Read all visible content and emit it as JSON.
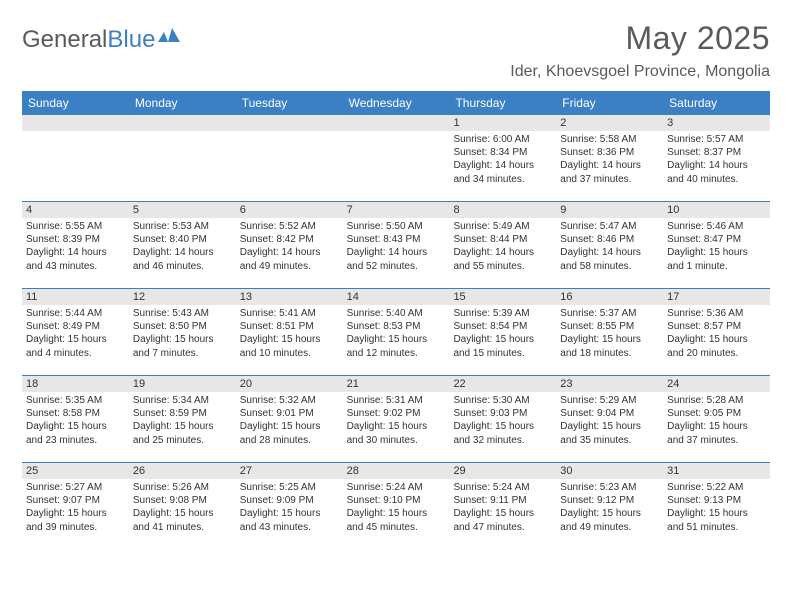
{
  "logo": {
    "text1": "General",
    "text2": "Blue"
  },
  "title": "May 2025",
  "location": "Ider, Khoevsgoel Province, Mongolia",
  "colors": {
    "header_bg": "#3b7fc4",
    "header_text": "#ffffff",
    "daynum_bg": "#e7e7e7",
    "border": "#3b7fc4",
    "text": "#333333",
    "title_text": "#5a5a5a",
    "background": "#ffffff"
  },
  "typography": {
    "title_fontsize": 32,
    "location_fontsize": 16,
    "dayhead_fontsize": 12,
    "cell_fontsize": 10,
    "font_family": "Arial"
  },
  "day_headers": [
    "Sunday",
    "Monday",
    "Tuesday",
    "Wednesday",
    "Thursday",
    "Friday",
    "Saturday"
  ],
  "weeks": [
    [
      {
        "n": "",
        "sunrise": "",
        "sunset": "",
        "daylight": ""
      },
      {
        "n": "",
        "sunrise": "",
        "sunset": "",
        "daylight": ""
      },
      {
        "n": "",
        "sunrise": "",
        "sunset": "",
        "daylight": ""
      },
      {
        "n": "",
        "sunrise": "",
        "sunset": "",
        "daylight": ""
      },
      {
        "n": "1",
        "sunrise": "Sunrise: 6:00 AM",
        "sunset": "Sunset: 8:34 PM",
        "daylight": "Daylight: 14 hours and 34 minutes."
      },
      {
        "n": "2",
        "sunrise": "Sunrise: 5:58 AM",
        "sunset": "Sunset: 8:36 PM",
        "daylight": "Daylight: 14 hours and 37 minutes."
      },
      {
        "n": "3",
        "sunrise": "Sunrise: 5:57 AM",
        "sunset": "Sunset: 8:37 PM",
        "daylight": "Daylight: 14 hours and 40 minutes."
      }
    ],
    [
      {
        "n": "4",
        "sunrise": "Sunrise: 5:55 AM",
        "sunset": "Sunset: 8:39 PM",
        "daylight": "Daylight: 14 hours and 43 minutes."
      },
      {
        "n": "5",
        "sunrise": "Sunrise: 5:53 AM",
        "sunset": "Sunset: 8:40 PM",
        "daylight": "Daylight: 14 hours and 46 minutes."
      },
      {
        "n": "6",
        "sunrise": "Sunrise: 5:52 AM",
        "sunset": "Sunset: 8:42 PM",
        "daylight": "Daylight: 14 hours and 49 minutes."
      },
      {
        "n": "7",
        "sunrise": "Sunrise: 5:50 AM",
        "sunset": "Sunset: 8:43 PM",
        "daylight": "Daylight: 14 hours and 52 minutes."
      },
      {
        "n": "8",
        "sunrise": "Sunrise: 5:49 AM",
        "sunset": "Sunset: 8:44 PM",
        "daylight": "Daylight: 14 hours and 55 minutes."
      },
      {
        "n": "9",
        "sunrise": "Sunrise: 5:47 AM",
        "sunset": "Sunset: 8:46 PM",
        "daylight": "Daylight: 14 hours and 58 minutes."
      },
      {
        "n": "10",
        "sunrise": "Sunrise: 5:46 AM",
        "sunset": "Sunset: 8:47 PM",
        "daylight": "Daylight: 15 hours and 1 minute."
      }
    ],
    [
      {
        "n": "11",
        "sunrise": "Sunrise: 5:44 AM",
        "sunset": "Sunset: 8:49 PM",
        "daylight": "Daylight: 15 hours and 4 minutes."
      },
      {
        "n": "12",
        "sunrise": "Sunrise: 5:43 AM",
        "sunset": "Sunset: 8:50 PM",
        "daylight": "Daylight: 15 hours and 7 minutes."
      },
      {
        "n": "13",
        "sunrise": "Sunrise: 5:41 AM",
        "sunset": "Sunset: 8:51 PM",
        "daylight": "Daylight: 15 hours and 10 minutes."
      },
      {
        "n": "14",
        "sunrise": "Sunrise: 5:40 AM",
        "sunset": "Sunset: 8:53 PM",
        "daylight": "Daylight: 15 hours and 12 minutes."
      },
      {
        "n": "15",
        "sunrise": "Sunrise: 5:39 AM",
        "sunset": "Sunset: 8:54 PM",
        "daylight": "Daylight: 15 hours and 15 minutes."
      },
      {
        "n": "16",
        "sunrise": "Sunrise: 5:37 AM",
        "sunset": "Sunset: 8:55 PM",
        "daylight": "Daylight: 15 hours and 18 minutes."
      },
      {
        "n": "17",
        "sunrise": "Sunrise: 5:36 AM",
        "sunset": "Sunset: 8:57 PM",
        "daylight": "Daylight: 15 hours and 20 minutes."
      }
    ],
    [
      {
        "n": "18",
        "sunrise": "Sunrise: 5:35 AM",
        "sunset": "Sunset: 8:58 PM",
        "daylight": "Daylight: 15 hours and 23 minutes."
      },
      {
        "n": "19",
        "sunrise": "Sunrise: 5:34 AM",
        "sunset": "Sunset: 8:59 PM",
        "daylight": "Daylight: 15 hours and 25 minutes."
      },
      {
        "n": "20",
        "sunrise": "Sunrise: 5:32 AM",
        "sunset": "Sunset: 9:01 PM",
        "daylight": "Daylight: 15 hours and 28 minutes."
      },
      {
        "n": "21",
        "sunrise": "Sunrise: 5:31 AM",
        "sunset": "Sunset: 9:02 PM",
        "daylight": "Daylight: 15 hours and 30 minutes."
      },
      {
        "n": "22",
        "sunrise": "Sunrise: 5:30 AM",
        "sunset": "Sunset: 9:03 PM",
        "daylight": "Daylight: 15 hours and 32 minutes."
      },
      {
        "n": "23",
        "sunrise": "Sunrise: 5:29 AM",
        "sunset": "Sunset: 9:04 PM",
        "daylight": "Daylight: 15 hours and 35 minutes."
      },
      {
        "n": "24",
        "sunrise": "Sunrise: 5:28 AM",
        "sunset": "Sunset: 9:05 PM",
        "daylight": "Daylight: 15 hours and 37 minutes."
      }
    ],
    [
      {
        "n": "25",
        "sunrise": "Sunrise: 5:27 AM",
        "sunset": "Sunset: 9:07 PM",
        "daylight": "Daylight: 15 hours and 39 minutes."
      },
      {
        "n": "26",
        "sunrise": "Sunrise: 5:26 AM",
        "sunset": "Sunset: 9:08 PM",
        "daylight": "Daylight: 15 hours and 41 minutes."
      },
      {
        "n": "27",
        "sunrise": "Sunrise: 5:25 AM",
        "sunset": "Sunset: 9:09 PM",
        "daylight": "Daylight: 15 hours and 43 minutes."
      },
      {
        "n": "28",
        "sunrise": "Sunrise: 5:24 AM",
        "sunset": "Sunset: 9:10 PM",
        "daylight": "Daylight: 15 hours and 45 minutes."
      },
      {
        "n": "29",
        "sunrise": "Sunrise: 5:24 AM",
        "sunset": "Sunset: 9:11 PM",
        "daylight": "Daylight: 15 hours and 47 minutes."
      },
      {
        "n": "30",
        "sunrise": "Sunrise: 5:23 AM",
        "sunset": "Sunset: 9:12 PM",
        "daylight": "Daylight: 15 hours and 49 minutes."
      },
      {
        "n": "31",
        "sunrise": "Sunrise: 5:22 AM",
        "sunset": "Sunset: 9:13 PM",
        "daylight": "Daylight: 15 hours and 51 minutes."
      }
    ]
  ]
}
